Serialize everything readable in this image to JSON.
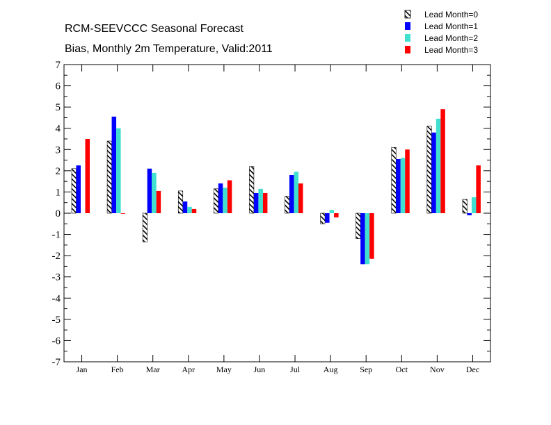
{
  "chart_data": {
    "type": "bar",
    "title": "RCM-SEEVCCC Seasonal Forecast",
    "subtitle": "Bias, Monthly 2m Temperature, Valid:2011",
    "xlabel": "",
    "ylabel": "",
    "ylim": [
      -7,
      7
    ],
    "yticks": [
      "7",
      "6",
      "5",
      "4",
      "3",
      "2",
      "1",
      "0",
      "-1",
      "-2",
      "-3",
      "-4",
      "-5",
      "-6",
      "-7"
    ],
    "grid": false,
    "legend_position": "top-right",
    "categories": [
      "Jan",
      "Feb",
      "Mar",
      "Apr",
      "May",
      "Jun",
      "Jul",
      "Aug",
      "Sep",
      "Oct",
      "Nov",
      "Dec"
    ],
    "series": [
      {
        "name": "Lead Month=0",
        "color": "#000000",
        "pattern": "hatched",
        "values": [
          2.1,
          3.4,
          -1.35,
          1.05,
          1.15,
          2.2,
          0.8,
          -0.5,
          -1.2,
          3.1,
          4.1,
          0.65
        ]
      },
      {
        "name": "Lead Month=1",
        "color": "#0000ff",
        "values": [
          2.25,
          4.55,
          2.1,
          0.55,
          1.4,
          0.95,
          1.8,
          -0.45,
          -2.4,
          2.55,
          3.8,
          -0.1
        ]
      },
      {
        "name": "Lead Month=2",
        "color": "#40e0d0",
        "values": [
          null,
          4.0,
          1.9,
          0.3,
          1.2,
          1.15,
          1.95,
          0.15,
          -2.4,
          2.6,
          4.45,
          0.75
        ]
      },
      {
        "name": "Lead Month=3",
        "color": "#ff0000",
        "values": [
          3.5,
          0.0,
          1.05,
          0.2,
          1.55,
          0.95,
          1.4,
          -0.2,
          -2.15,
          3.0,
          4.9,
          2.25
        ]
      }
    ]
  }
}
